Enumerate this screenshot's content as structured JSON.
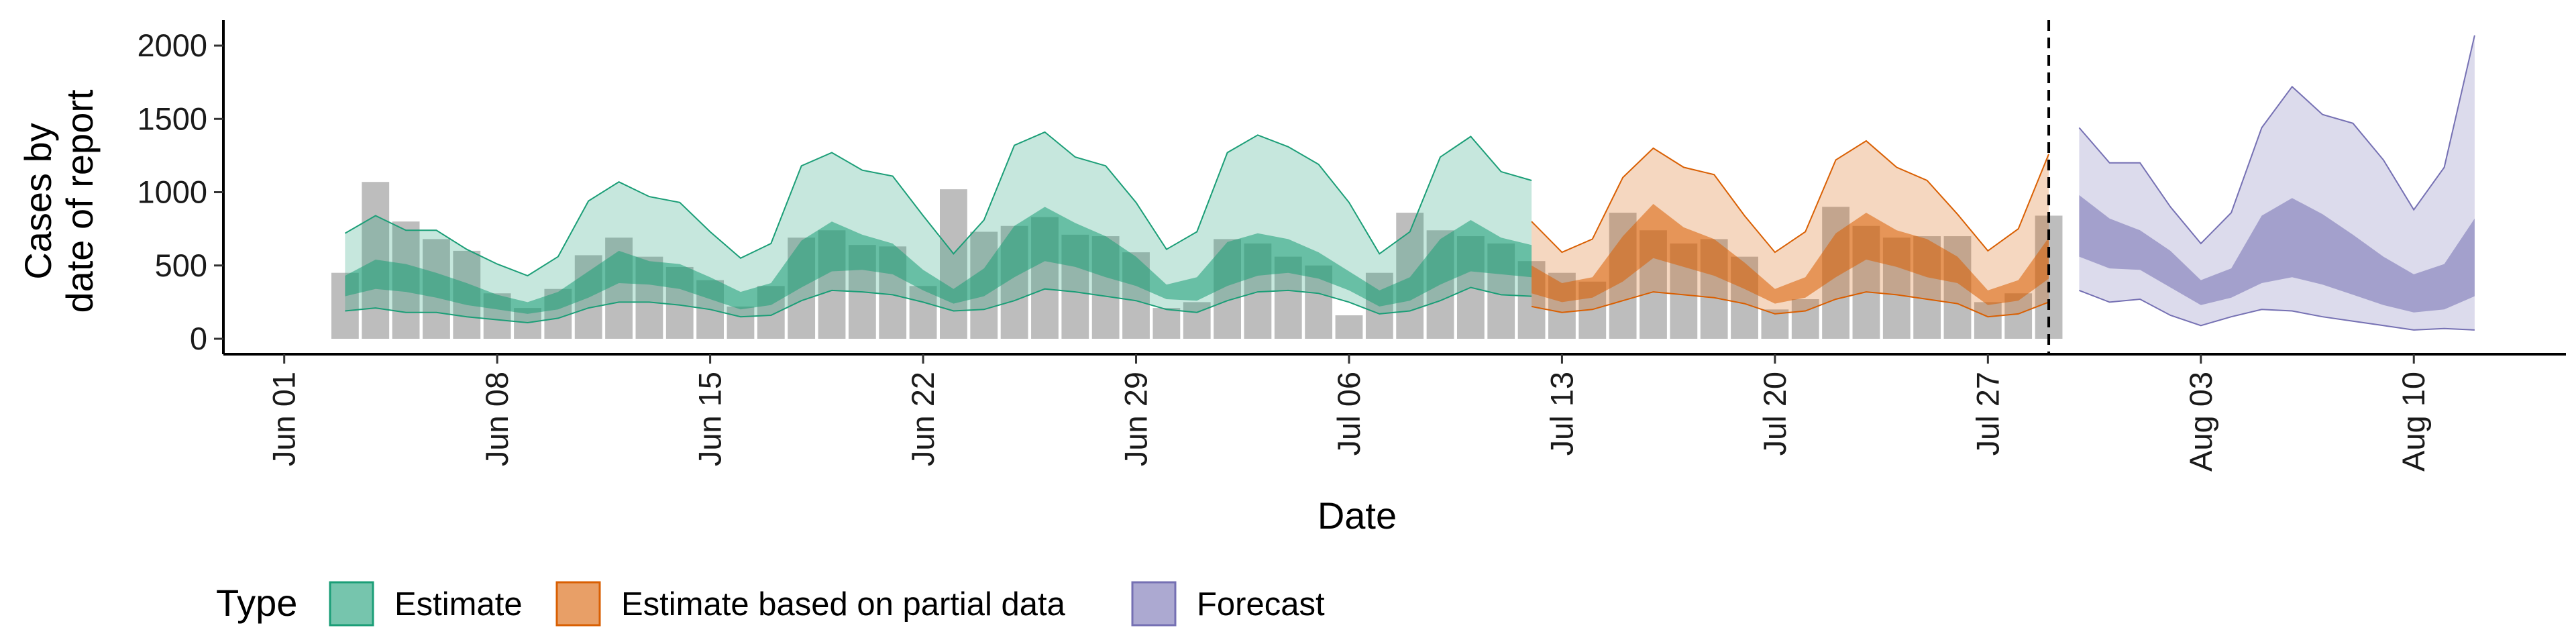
{
  "chart_data": {
    "type": "area",
    "xlabel": "Date",
    "ylabel_lines": [
      "Cases by",
      "date of report"
    ],
    "ylim": [
      0,
      2000
    ],
    "yticks": [
      0,
      500,
      1000,
      1500,
      2000
    ],
    "ytick_labels": [
      "0",
      "500",
      "1000",
      "1500",
      "2000"
    ],
    "xlim": [
      "2020-05-30",
      "2020-08-15"
    ],
    "xticks": [
      "2020-06-01",
      "2020-06-08",
      "2020-06-15",
      "2020-06-22",
      "2020-06-29",
      "2020-07-06",
      "2020-07-13",
      "2020-07-20",
      "2020-07-27",
      "2020-08-03",
      "2020-08-10"
    ],
    "xtick_labels": [
      "Jun 01",
      "Jun 08",
      "Jun 15",
      "Jun 22",
      "Jun 29",
      "Jul 06",
      "Jul 13",
      "Jul 20",
      "Jul 27",
      "Aug 03",
      "Aug 10"
    ],
    "forecast_date": "2020-07-29",
    "legend": {
      "title": "Type",
      "placement": "bottom",
      "items": [
        "Estimate",
        "Estimate based on partial data",
        "Forecast"
      ]
    },
    "bars": {
      "start": "2020-06-03",
      "values": [
        450,
        1070,
        800,
        680,
        600,
        310,
        210,
        340,
        570,
        690,
        560,
        490,
        400,
        220,
        360,
        690,
        740,
        640,
        630,
        360,
        1020,
        730,
        770,
        830,
        710,
        700,
        590,
        210,
        250,
        680,
        650,
        560,
        500,
        160,
        450,
        860,
        740,
        700,
        650,
        530,
        450,
        390,
        860,
        740,
        650,
        680,
        560,
        200,
        270,
        900,
        770,
        690,
        700,
        700,
        250,
        310,
        840
      ]
    },
    "series": [
      {
        "name": "Estimate",
        "color": "#1B9E77",
        "start": "2020-06-03",
        "outer_upper": [
          720,
          840,
          740,
          740,
          610,
          510,
          430,
          560,
          940,
          1070,
          970,
          930,
          730,
          550,
          650,
          1180,
          1270,
          1150,
          1110,
          840,
          580,
          810,
          1320,
          1410,
          1240,
          1180,
          930,
          610,
          730,
          1270,
          1390,
          1310,
          1190,
          930,
          580,
          730,
          1240,
          1380,
          1140,
          1080
        ],
        "inner_upper": [
          430,
          540,
          510,
          450,
          380,
          300,
          250,
          320,
          460,
          600,
          530,
          510,
          420,
          320,
          380,
          670,
          800,
          710,
          650,
          470,
          340,
          480,
          770,
          900,
          790,
          700,
          560,
          370,
          420,
          660,
          720,
          680,
          590,
          460,
          330,
          420,
          680,
          810,
          690,
          640
        ],
        "inner_lower": [
          290,
          340,
          320,
          280,
          230,
          200,
          170,
          200,
          280,
          380,
          370,
          340,
          270,
          200,
          230,
          350,
          460,
          470,
          440,
          330,
          240,
          290,
          420,
          530,
          490,
          420,
          360,
          270,
          260,
          360,
          430,
          450,
          410,
          330,
          220,
          260,
          370,
          460,
          440,
          420
        ],
        "outer_lower": [
          190,
          210,
          180,
          180,
          150,
          130,
          110,
          140,
          210,
          250,
          250,
          230,
          200,
          150,
          160,
          260,
          330,
          320,
          300,
          250,
          190,
          200,
          260,
          340,
          320,
          290,
          260,
          200,
          180,
          260,
          320,
          330,
          310,
          250,
          170,
          190,
          260,
          350,
          300,
          290
        ]
      },
      {
        "name": "Estimate based on partial data",
        "color": "#D95F02",
        "start": "2020-07-12",
        "outer_upper": [
          800,
          590,
          680,
          1100,
          1300,
          1170,
          1120,
          840,
          590,
          730,
          1220,
          1350,
          1170,
          1080,
          850,
          600,
          750,
          1260
        ],
        "inner_upper": [
          500,
          380,
          420,
          700,
          920,
          760,
          680,
          520,
          340,
          420,
          720,
          860,
          740,
          680,
          560,
          330,
          400,
          690
        ],
        "inner_lower": [
          310,
          250,
          280,
          390,
          550,
          490,
          430,
          340,
          240,
          280,
          420,
          540,
          490,
          420,
          380,
          230,
          260,
          410
        ],
        "outer_lower": [
          220,
          180,
          200,
          260,
          320,
          300,
          280,
          240,
          170,
          190,
          270,
          320,
          300,
          270,
          240,
          150,
          170,
          250
        ]
      },
      {
        "name": "Forecast",
        "color": "#7570B3",
        "start": "2020-07-30",
        "outer_upper": [
          1440,
          1200,
          1200,
          900,
          650,
          860,
          1440,
          1720,
          1530,
          1470,
          1220,
          880,
          1170,
          2070
        ],
        "inner_upper": [
          980,
          820,
          740,
          600,
          400,
          480,
          840,
          960,
          850,
          710,
          560,
          440,
          510,
          820
        ],
        "inner_lower": [
          560,
          480,
          470,
          350,
          230,
          280,
          380,
          420,
          370,
          300,
          230,
          180,
          200,
          290
        ],
        "outer_lower": [
          330,
          250,
          270,
          160,
          90,
          150,
          200,
          190,
          150,
          120,
          90,
          60,
          70,
          60
        ]
      }
    ]
  }
}
